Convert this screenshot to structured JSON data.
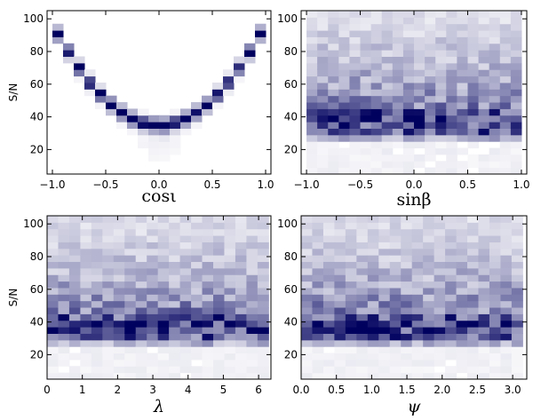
{
  "chart_data": [
    {
      "type": "heatmap",
      "xlabel": "cosι",
      "ylabel": "S/N",
      "xlim": [
        -1.05,
        1.05
      ],
      "ylim": [
        5,
        105
      ],
      "xticks": [
        "−1.0",
        "−0.5",
        "0.0",
        "0.5",
        "1.0"
      ],
      "xtick_values": [
        -1.0,
        -0.5,
        0.0,
        0.5,
        1.0
      ],
      "yticks": [
        "20",
        "40",
        "60",
        "80",
        "100"
      ],
      "ytick_values": [
        20,
        40,
        60,
        80,
        100
      ],
      "grid": false,
      "colormap": [
        "#ffffff",
        "#00005f"
      ],
      "x_bins": [
        -1.0,
        1.0,
        20
      ],
      "y_bins": [
        5,
        105,
        25
      ],
      "pattern": "v-curve"
    },
    {
      "type": "heatmap",
      "xlabel": "sinβ",
      "ylabel": "",
      "xlim": [
        -1.05,
        1.05
      ],
      "ylim": [
        5,
        105
      ],
      "xticks": [
        "−1.0",
        "−0.5",
        "0.0",
        "0.5",
        "1.0"
      ],
      "xtick_values": [
        -1.0,
        -0.5,
        0.0,
        0.5,
        1.0
      ],
      "yticks": [
        "20",
        "40",
        "60",
        "80",
        "100"
      ],
      "ytick_values": [
        20,
        40,
        60,
        80,
        100
      ],
      "grid": false,
      "colormap": [
        "#ffffff",
        "#00005f"
      ],
      "x_bins": [
        -1.0,
        1.0,
        20
      ],
      "y_bins": [
        5,
        105,
        25
      ],
      "pattern": "uniform-band"
    },
    {
      "type": "heatmap",
      "xlabel": "λ",
      "ylabel": "S/N",
      "xlim": [
        0,
        6.35
      ],
      "ylim": [
        5,
        105
      ],
      "xticks": [
        "0",
        "1",
        "2",
        "3",
        "4",
        "5",
        "6"
      ],
      "xtick_values": [
        0,
        1,
        2,
        3,
        4,
        5,
        6
      ],
      "yticks": [
        "20",
        "40",
        "60",
        "80",
        "100"
      ],
      "ytick_values": [
        20,
        40,
        60,
        80,
        100
      ],
      "grid": false,
      "colormap": [
        "#ffffff",
        "#00005f"
      ],
      "x_bins": [
        0,
        6.283,
        20
      ],
      "y_bins": [
        5,
        105,
        25
      ],
      "pattern": "uniform-band"
    },
    {
      "type": "heatmap",
      "xlabel": "ψ",
      "ylabel": "",
      "xlim": [
        0,
        3.2
      ],
      "ylim": [
        5,
        105
      ],
      "xticks": [
        "0.0",
        "0.5",
        "1.0",
        "1.5",
        "2.0",
        "2.5",
        "3.0"
      ],
      "xtick_values": [
        0.0,
        0.5,
        1.0,
        1.5,
        2.0,
        2.5,
        3.0
      ],
      "yticks": [
        "20",
        "40",
        "60",
        "80",
        "100"
      ],
      "ytick_values": [
        20,
        40,
        60,
        80,
        100
      ],
      "grid": false,
      "colormap": [
        "#ffffff",
        "#00005f"
      ],
      "x_bins": [
        0,
        3.1416,
        20
      ],
      "y_bins": [
        5,
        105,
        25
      ],
      "pattern": "uniform-band"
    }
  ]
}
